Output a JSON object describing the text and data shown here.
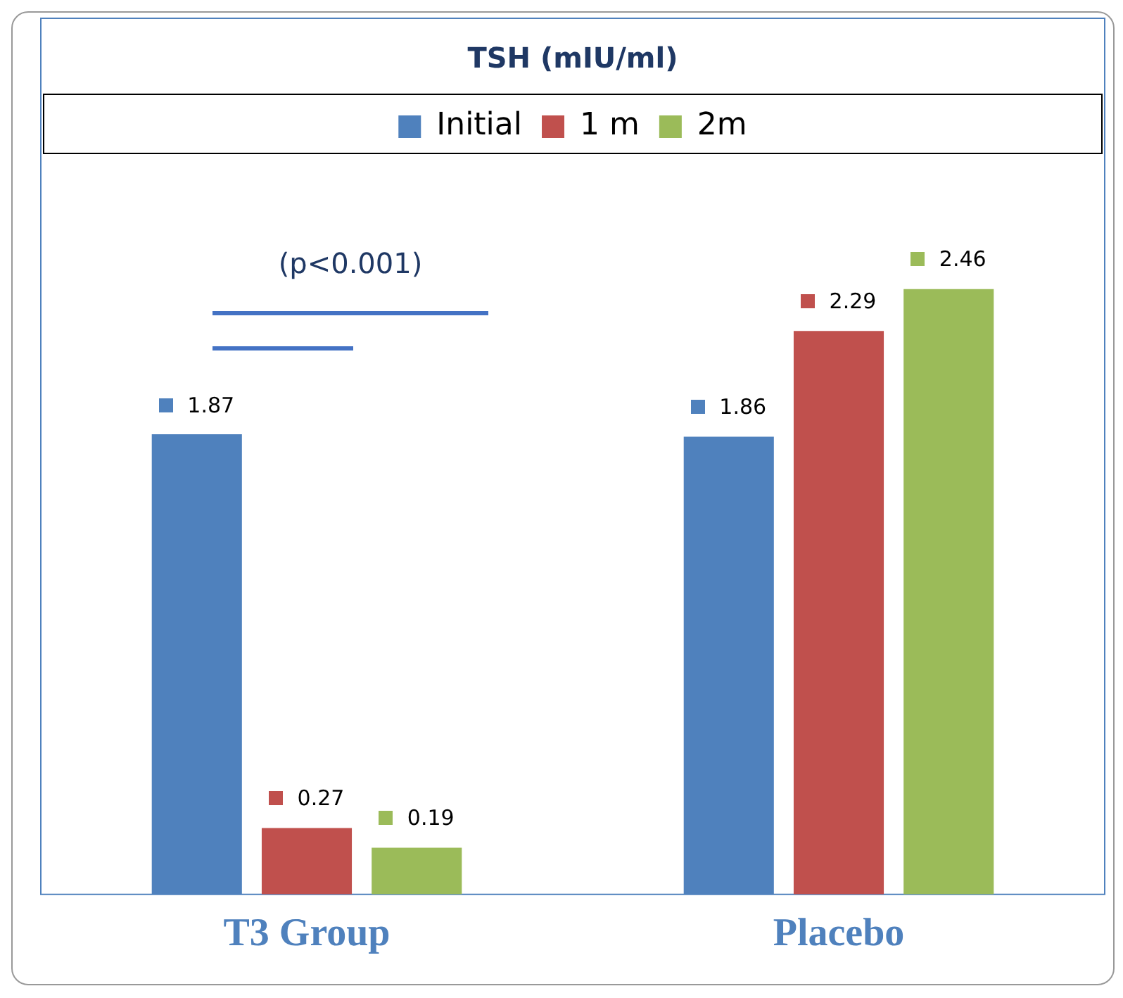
{
  "chart_data": {
    "type": "bar",
    "title": "TSH (mIU/ml)",
    "categories": [
      "T3 Group",
      "Placebo"
    ],
    "series": [
      {
        "name": "Initial",
        "color": "#4f81bd",
        "values": [
          1.87,
          1.86
        ]
      },
      {
        "name": "1 m",
        "color": "#c0504d",
        "values": [
          0.27,
          2.29
        ]
      },
      {
        "name": "2m",
        "color": "#9bbb59",
        "values": [
          0.19,
          2.46
        ]
      }
    ],
    "data_labels": true,
    "legend": "top",
    "grid": false,
    "tick_labels": "x",
    "annotations": [
      "(p<0.001)"
    ]
  }
}
